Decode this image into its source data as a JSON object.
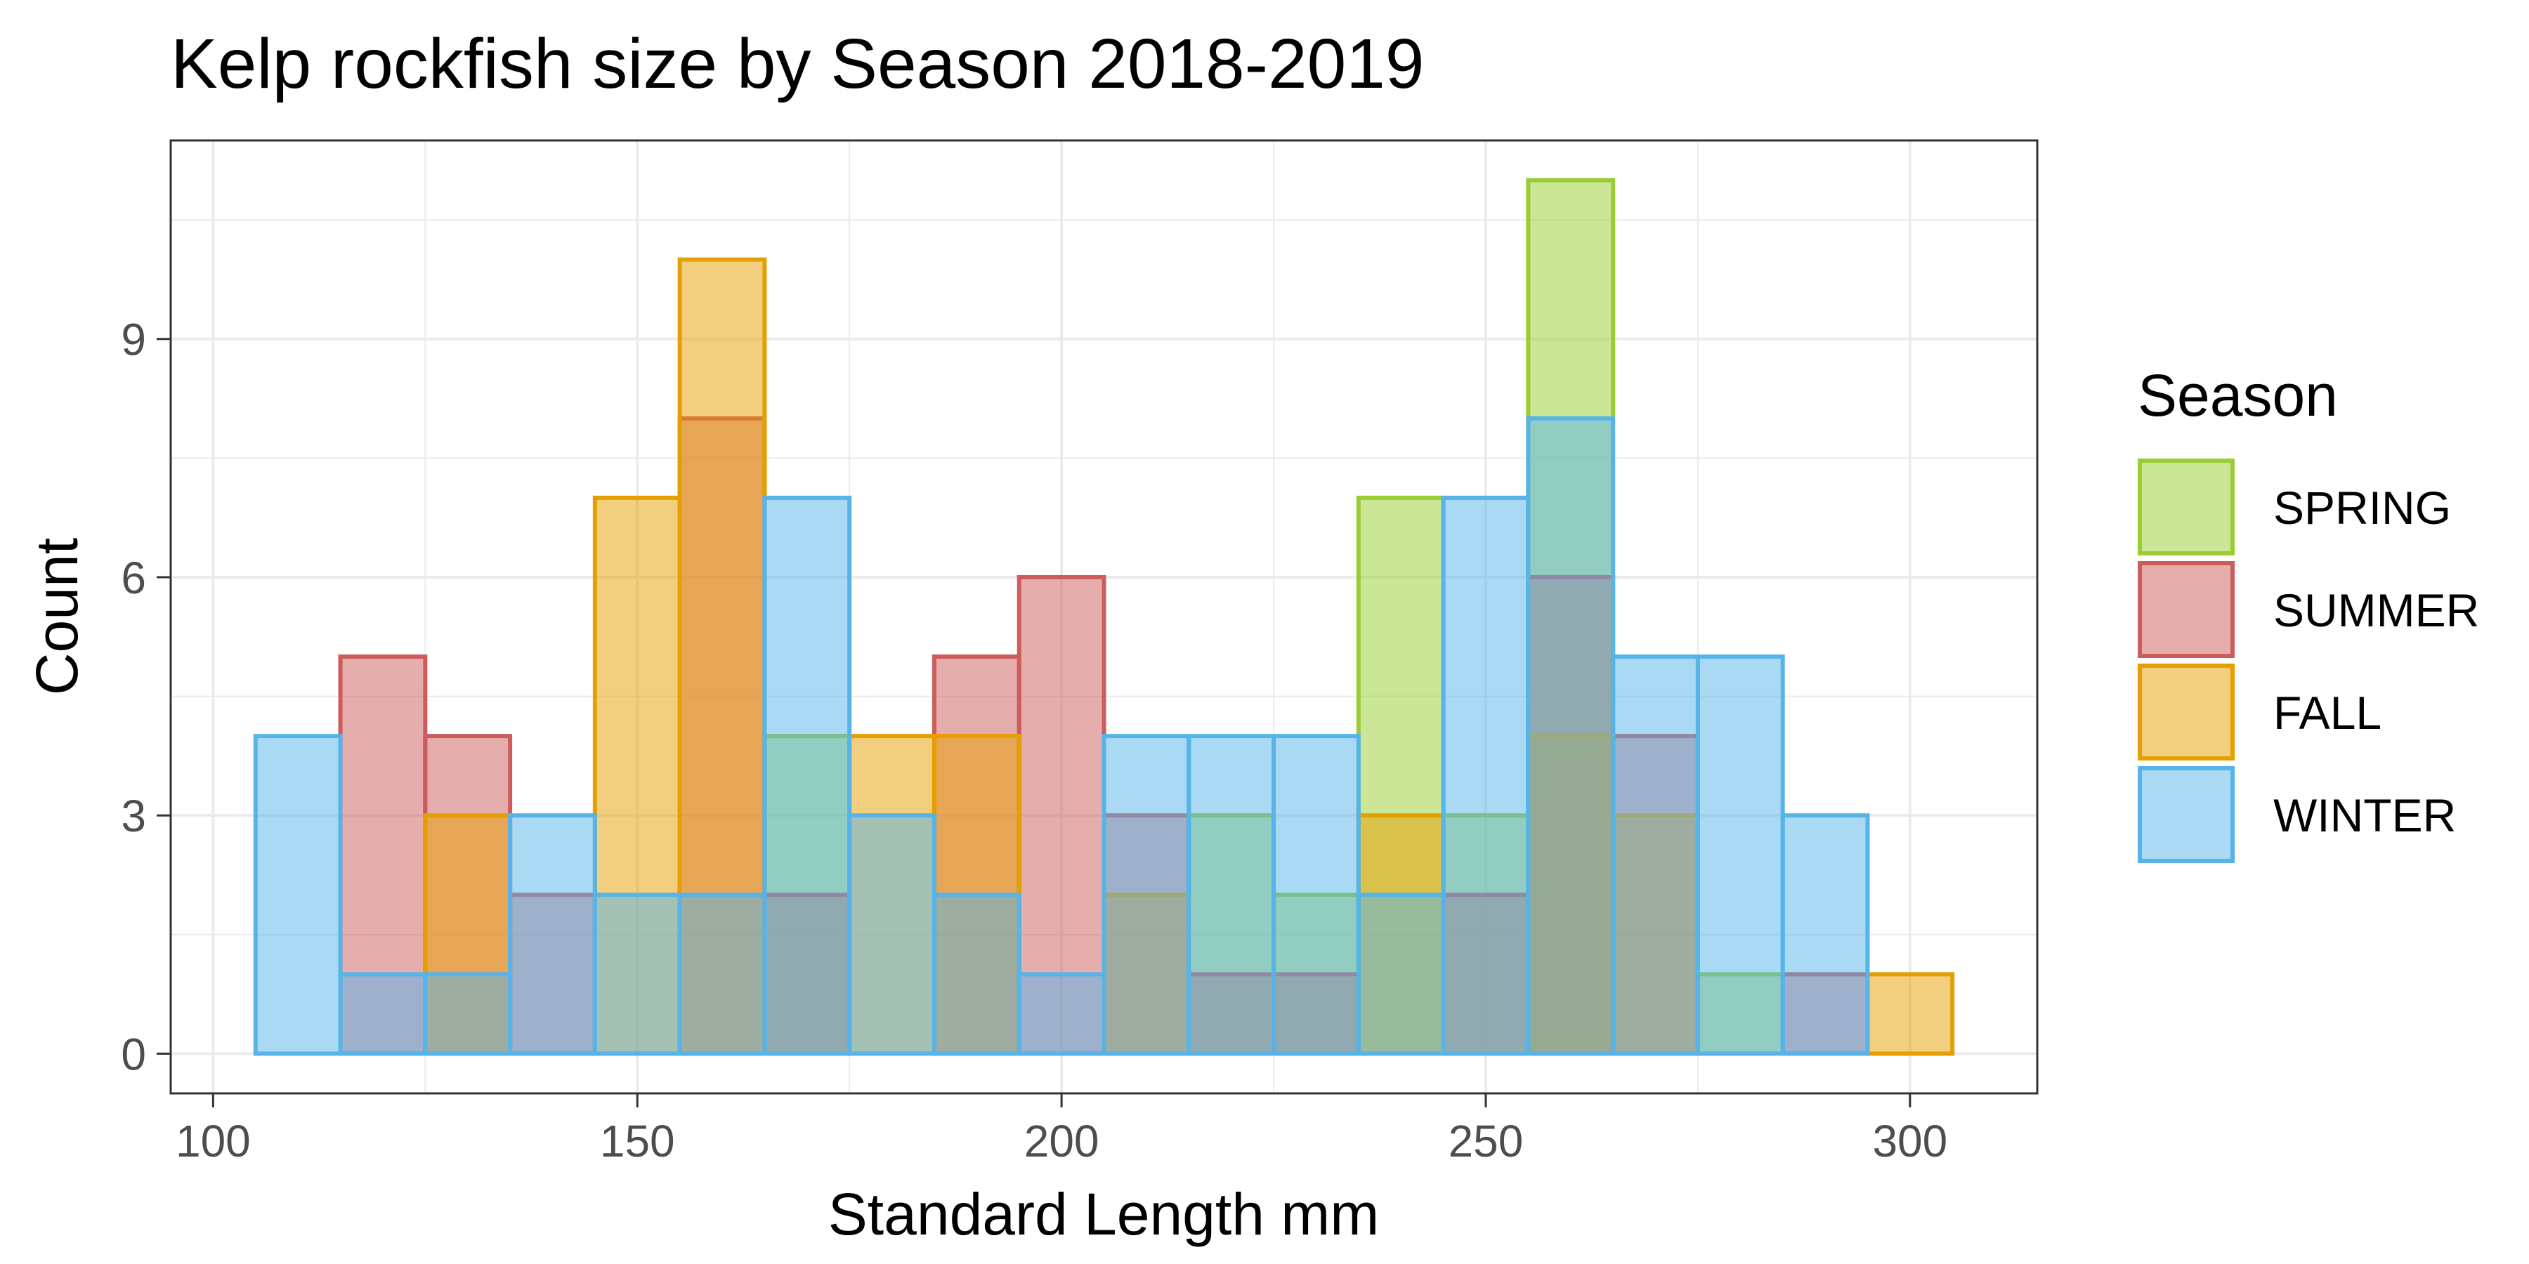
{
  "chart_data": {
    "type": "bar",
    "subtype": "overlaid-histogram",
    "title": "Kelp rockfish size by Season 2018-2019",
    "xlabel": "Standard Length mm",
    "ylabel": "Count",
    "xlim": [
      95,
      315
    ],
    "ylim": [
      -0.5,
      11.5
    ],
    "xticks": [
      100,
      150,
      200,
      250,
      300
    ],
    "xtick_labels": [
      "100",
      "150",
      "200",
      "250",
      "300"
    ],
    "yticks": [
      0,
      3,
      6,
      9
    ],
    "ytick_labels": [
      "0",
      "3",
      "6",
      "9"
    ],
    "grid": true,
    "bin_width": 10,
    "bin_centers": [
      110,
      120,
      130,
      140,
      150,
      160,
      170,
      180,
      190,
      200,
      210,
      220,
      230,
      240,
      250,
      260,
      270,
      280,
      290,
      300
    ],
    "legend": {
      "title": "Season",
      "position": "right"
    },
    "series": [
      {
        "name": "SPRING",
        "color": "#9acd32",
        "fill": "#9acd32",
        "values": [
          0,
          0,
          0,
          0,
          0,
          0,
          4,
          0,
          0,
          0,
          0,
          3,
          2,
          7,
          3,
          11,
          0,
          1,
          0,
          0
        ]
      },
      {
        "name": "SUMMER",
        "color": "#cd5c5c",
        "fill": "#cd5c5c",
        "values": [
          0,
          5,
          4,
          2,
          0,
          8,
          2,
          0,
          5,
          6,
          3,
          1,
          1,
          0,
          2,
          6,
          4,
          0,
          1,
          0
        ]
      },
      {
        "name": "FALL",
        "color": "#e69f00",
        "fill": "#e69f00",
        "values": [
          0,
          0,
          3,
          0,
          7,
          10,
          0,
          4,
          4,
          0,
          2,
          0,
          0,
          3,
          0,
          4,
          3,
          0,
          0,
          1
        ]
      },
      {
        "name": "WINTER",
        "color": "#56b4e9",
        "fill": "#56b4e9",
        "values": [
          4,
          1,
          1,
          3,
          2,
          2,
          7,
          3,
          2,
          1,
          4,
          4,
          4,
          2,
          7,
          8,
          5,
          5,
          3,
          0
        ]
      }
    ]
  }
}
